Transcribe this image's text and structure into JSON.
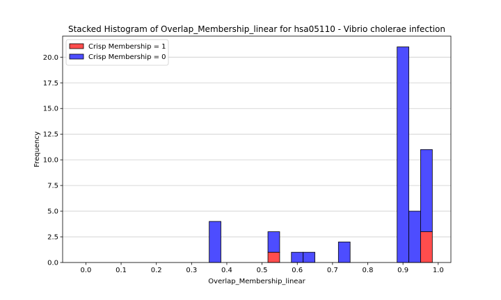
{
  "chart_data": {
    "type": "bar",
    "stacked": true,
    "title": "Stacked Histogram of Overlap_Membership_linear for hsa05110 - Vibrio cholerae infection",
    "xlabel": "Overlap_Membership_linear",
    "ylabel": "Frequency",
    "xlim": [
      -0.066,
      1.036
    ],
    "ylim": [
      0,
      22.05
    ],
    "bin_width": 0.0333,
    "xticks": [
      "0.0",
      "0.1",
      "0.2",
      "0.3",
      "0.4",
      "0.5",
      "0.6",
      "0.7",
      "0.8",
      "0.9",
      "1.0"
    ],
    "yticks": [
      "0.0",
      "2.5",
      "5.0",
      "7.5",
      "10.0",
      "12.5",
      "15.0",
      "17.5",
      "20.0"
    ],
    "grid": "horizontal",
    "legend_position": "top-left",
    "bins_left_edge": [
      0.35,
      0.5167,
      0.5833,
      0.6167,
      0.7167,
      0.8833,
      0.9167,
      0.95
    ],
    "series": [
      {
        "name": "Crisp Membership = 1",
        "color": "#ff4d4d",
        "values": [
          0,
          1,
          0,
          0,
          0,
          0,
          0,
          3
        ]
      },
      {
        "name": "Crisp Membership = 0",
        "color": "#4d4dff",
        "values": [
          4,
          2,
          1,
          1,
          2,
          21,
          5,
          8
        ]
      }
    ]
  }
}
